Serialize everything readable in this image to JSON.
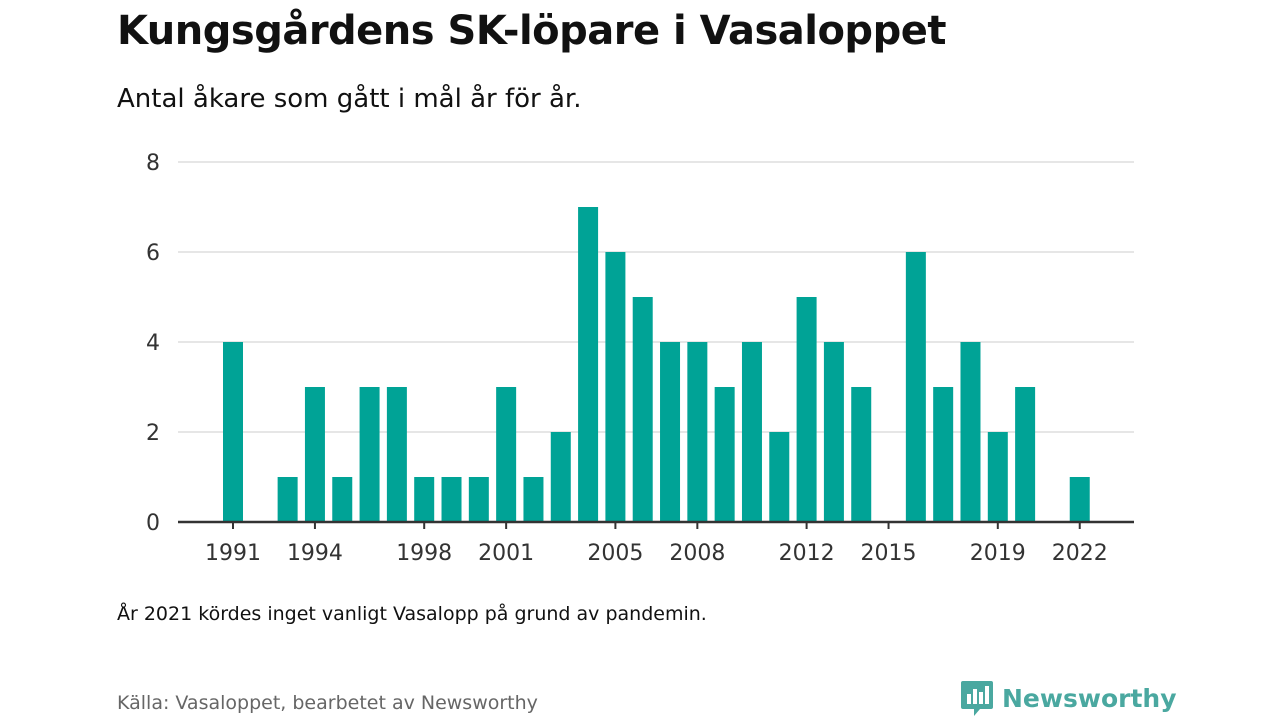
{
  "title": "Kungsgårdens SK-löpare i Vasaloppet",
  "subtitle": "Antal åkare som gått i mål år för år.",
  "note": "År 2021 kördes inget vanligt Vasalopp på grund av pandemin.",
  "source": "Källa: Vasaloppet, bearbetet av Newsworthy",
  "brand": "Newsworthy",
  "colors": {
    "bar": "#00a396",
    "brand": "#4aa8a0",
    "grid": "#dddddd",
    "axis": "#333333"
  },
  "chart_data": {
    "type": "bar",
    "title": "Kungsgårdens SK-löpare i Vasaloppet",
    "subtitle": "Antal åkare som gått i mål år för år.",
    "xlabel": "",
    "ylabel": "",
    "ylim": [
      0,
      8
    ],
    "yticks": [
      0,
      2,
      4,
      6,
      8
    ],
    "xticks": [
      1991,
      1994,
      1998,
      2001,
      2005,
      2008,
      2012,
      2015,
      2019,
      2022
    ],
    "grid": true,
    "categories": [
      1991,
      1992,
      1993,
      1994,
      1995,
      1996,
      1997,
      1998,
      1999,
      2000,
      2001,
      2002,
      2003,
      2004,
      2005,
      2006,
      2007,
      2008,
      2009,
      2010,
      2011,
      2012,
      2013,
      2014,
      2015,
      2016,
      2017,
      2018,
      2019,
      2020,
      2021,
      2022
    ],
    "values": [
      4,
      0,
      1,
      3,
      1,
      3,
      3,
      1,
      1,
      1,
      3,
      1,
      2,
      7,
      6,
      5,
      4,
      4,
      3,
      4,
      2,
      5,
      4,
      3,
      0,
      6,
      3,
      4,
      2,
      3,
      0,
      1
    ]
  }
}
